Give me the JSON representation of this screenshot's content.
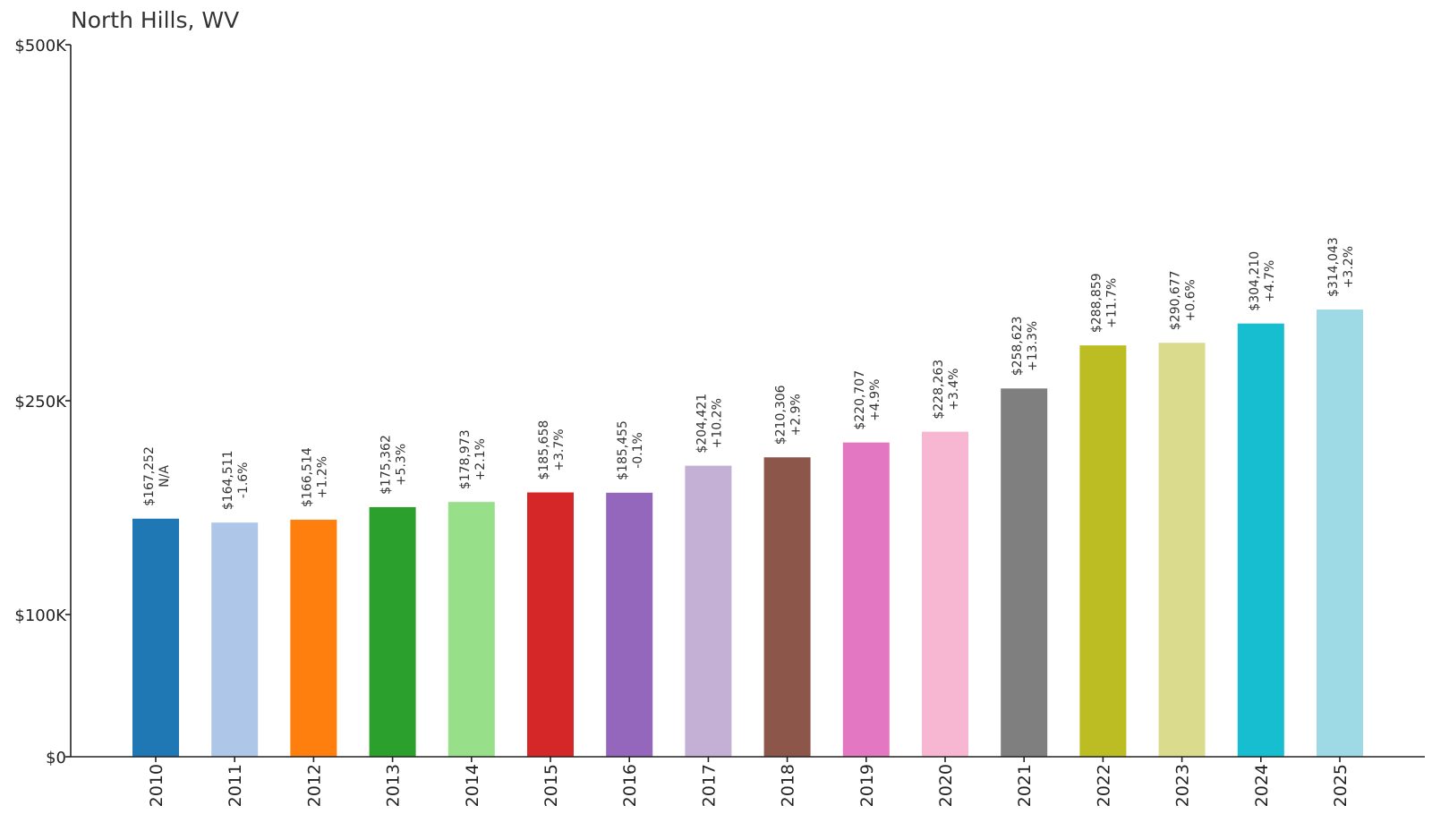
{
  "chart_data": {
    "type": "bar",
    "title": "North Hills, WV",
    "xlabel": "",
    "ylabel": "",
    "ylim": [
      0,
      500000
    ],
    "y_ticks": [
      {
        "value": 0,
        "label": "$0"
      },
      {
        "value": 100000,
        "label": "$100K"
      },
      {
        "value": 250000,
        "label": "$250K"
      },
      {
        "value": 500000,
        "label": "$500K"
      }
    ],
    "categories": [
      "2010",
      "2011",
      "2012",
      "2013",
      "2014",
      "2015",
      "2016",
      "2017",
      "2018",
      "2019",
      "2020",
      "2021",
      "2022",
      "2023",
      "2024",
      "2025"
    ],
    "values": [
      167252,
      164511,
      166514,
      175362,
      178973,
      185658,
      185455,
      204421,
      210306,
      220707,
      228263,
      258623,
      288859,
      290677,
      304210,
      314043
    ],
    "value_labels": [
      "$167,252",
      "$164,511",
      "$166,514",
      "$175,362",
      "$178,973",
      "$185,658",
      "$185,455",
      "$204,421",
      "$210,306",
      "$220,707",
      "$228,263",
      "$258,623",
      "$288,859",
      "$290,677",
      "$304,210",
      "$314,043"
    ],
    "change_labels": [
      "N/A",
      "-1.6%",
      "+1.2%",
      "+5.3%",
      "+2.1%",
      "+3.7%",
      "-0.1%",
      "+10.2%",
      "+2.9%",
      "+4.9%",
      "+3.4%",
      "+13.3%",
      "+11.7%",
      "+0.6%",
      "+4.7%",
      "+3.2%"
    ],
    "colors": [
      "#1f77b4",
      "#aec7e8",
      "#ff7f0e",
      "#2ca02c",
      "#98df8a",
      "#d62728",
      "#9467bd",
      "#c5b0d5",
      "#8c564b",
      "#e377c2",
      "#f7b6d2",
      "#7f7f7f",
      "#bcbd22",
      "#dbdb8d",
      "#17becf",
      "#9edae5"
    ]
  }
}
